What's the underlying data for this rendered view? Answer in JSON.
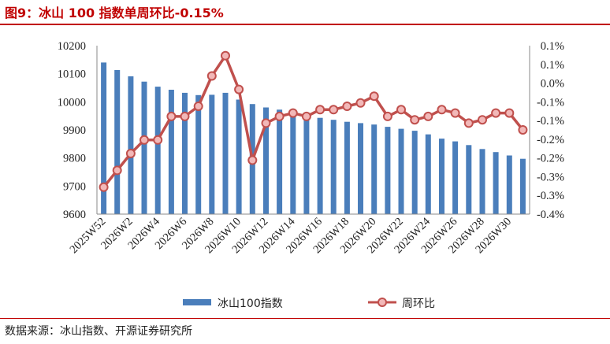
{
  "title": "图9：冰山 100 指数单周环比-0.15%",
  "source": "数据来源：冰山指数、开源证券研究所",
  "chart_data": {
    "type": "bar+line",
    "categories": [
      "2025W52",
      "2026W1",
      "2026W2",
      "2026W3",
      "2026W4",
      "2026W5",
      "2026W6",
      "2026W7",
      "2026W8",
      "2026W9",
      "2026W10",
      "2026W11",
      "2026W12",
      "2026W13",
      "2026W14",
      "2026W15",
      "2026W16",
      "2026W17",
      "2026W18",
      "2026W19",
      "2026W20",
      "2026W21",
      "2026W22",
      "2026W23",
      "2026W24",
      "2026W25",
      "2026W26",
      "2026W27",
      "2026W28",
      "2026W29",
      "2026W30",
      "2026W31"
    ],
    "x_tick_labels": [
      "2025W52",
      "2026W2",
      "2026W4",
      "2026W6",
      "2026W8",
      "2026W10",
      "2026W12",
      "2026W14",
      "2026W16",
      "2026W18",
      "2026W20",
      "2026W22",
      "2026W24",
      "2026W26",
      "2026W28",
      "2026W30"
    ],
    "series": [
      {
        "name": "冰山100指数",
        "type": "bar",
        "axis": "left",
        "color": "#4a7ebb",
        "values": [
          10140,
          10113,
          10091,
          10072,
          10054,
          10043,
          10032,
          10024,
          10025,
          10032,
          10008,
          9992,
          9980,
          9972,
          9961,
          9951,
          9943,
          9936,
          9929,
          9924,
          9919,
          9911,
          9904,
          9897,
          9884,
          9869,
          9859,
          9846,
          9832,
          9821,
          9809,
          9797
        ]
      },
      {
        "name": "周环比",
        "type": "line",
        "axis": "right",
        "color": "#c0504d",
        "marker_fill": "#f2b8b8",
        "values": [
          -0.32,
          -0.27,
          -0.22,
          -0.18,
          -0.18,
          -0.11,
          -0.11,
          -0.08,
          0.01,
          0.07,
          -0.03,
          -0.24,
          -0.13,
          -0.11,
          -0.1,
          -0.11,
          -0.09,
          -0.09,
          -0.08,
          -0.07,
          -0.05,
          -0.11,
          -0.09,
          -0.12,
          -0.11,
          -0.09,
          -0.1,
          -0.13,
          -0.12,
          -0.1,
          -0.1,
          -0.15
        ]
      }
    ],
    "y_left": {
      "min": 9600,
      "max": 10200,
      "step": 100,
      "ticks": [
        "9600",
        "9700",
        "9800",
        "9900",
        "10000",
        "10100",
        "10200"
      ]
    },
    "y_right": {
      "min": -0.4,
      "max": 0.1,
      "ticks": [
        "-0.4%",
        "-0.3%",
        "-0.3%",
        "-0.2%",
        "-0.2%",
        "-0.1%",
        "-0.1%",
        "0.0%",
        "0.1%",
        "0.1%"
      ]
    },
    "legend_position": "bottom",
    "grid": false
  }
}
